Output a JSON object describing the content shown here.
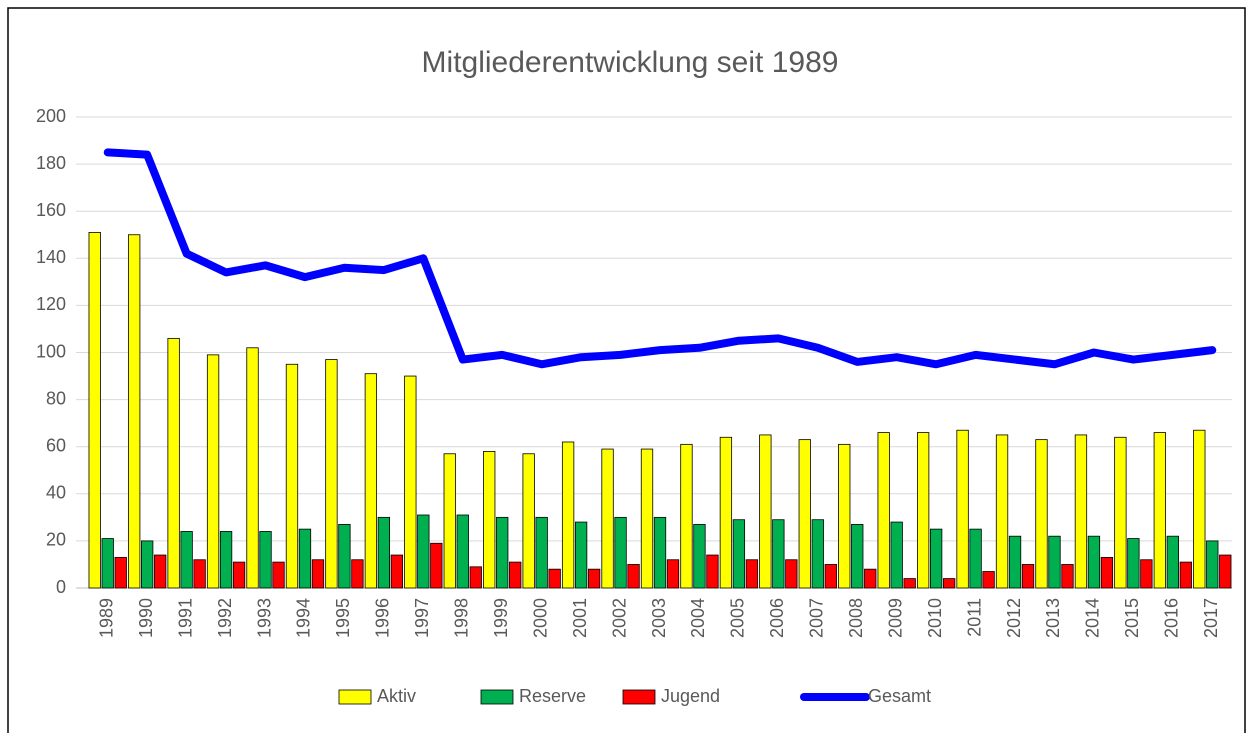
{
  "chart_data": {
    "type": "bar",
    "title": "Mitgliederentwicklung seit 1989",
    "categories": [
      "1989",
      "1990",
      "1991",
      "1992",
      "1993",
      "1994",
      "1995",
      "1996",
      "1997",
      "1998",
      "1999",
      "2000",
      "2001",
      "2002",
      "2003",
      "2004",
      "2005",
      "2006",
      "2007",
      "2008",
      "2009",
      "2010",
      "2011",
      "2012",
      "2013",
      "2014",
      "2015",
      "2016",
      "2017"
    ],
    "series": [
      {
        "name": "Aktiv",
        "type": "bar",
        "color": "#ffff00",
        "values": [
          151,
          150,
          106,
          99,
          102,
          95,
          97,
          91,
          90,
          57,
          58,
          57,
          62,
          59,
          59,
          61,
          64,
          65,
          63,
          61,
          66,
          66,
          67,
          65,
          63,
          65,
          64,
          66,
          67
        ]
      },
      {
        "name": "Reserve",
        "type": "bar",
        "color": "#00b050",
        "values": [
          21,
          20,
          24,
          24,
          24,
          25,
          27,
          30,
          31,
          31,
          30,
          30,
          28,
          30,
          30,
          27,
          29,
          29,
          29,
          27,
          28,
          25,
          25,
          22,
          22,
          22,
          21,
          22,
          20
        ]
      },
      {
        "name": "Jugend",
        "type": "bar",
        "color": "#ff0000",
        "values": [
          13,
          14,
          12,
          11,
          11,
          12,
          12,
          14,
          19,
          9,
          11,
          8,
          8,
          10,
          12,
          14,
          12,
          12,
          10,
          8,
          4,
          4,
          7,
          10,
          10,
          13,
          12,
          11,
          14
        ]
      },
      {
        "name": "Gesamt",
        "type": "line",
        "color": "#0000ff",
        "values": [
          185,
          184,
          142,
          134,
          137,
          132,
          136,
          135,
          140,
          97,
          99,
          95,
          98,
          99,
          101,
          102,
          105,
          106,
          102,
          96,
          98,
          95,
          99,
          97,
          95,
          100,
          97,
          99,
          101
        ]
      }
    ],
    "ylim": [
      0,
      200
    ],
    "yticks": [
      0,
      20,
      40,
      60,
      80,
      100,
      120,
      140,
      160,
      180,
      200
    ],
    "grid": true,
    "legend": "bottom"
  }
}
